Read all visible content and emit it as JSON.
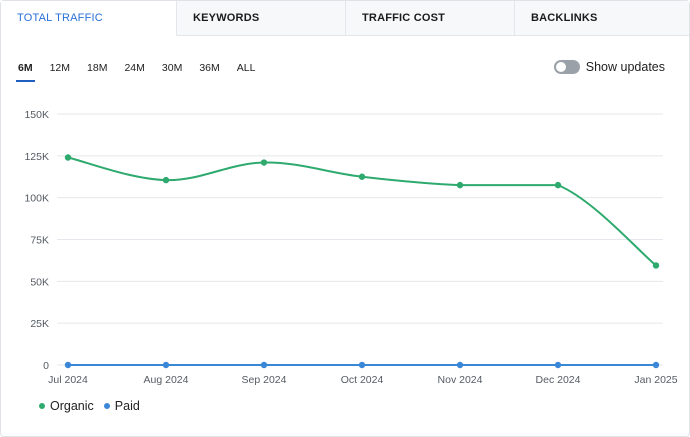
{
  "tabs": [
    {
      "label": "TOTAL TRAFFIC",
      "active": true
    },
    {
      "label": "KEYWORDS",
      "active": false
    },
    {
      "label": "TRAFFIC COST",
      "active": false
    },
    {
      "label": "BACKLINKS",
      "active": false
    }
  ],
  "ranges": [
    {
      "label": "6M",
      "active": true
    },
    {
      "label": "12M",
      "active": false
    },
    {
      "label": "18M",
      "active": false
    },
    {
      "label": "24M",
      "active": false
    },
    {
      "label": "30M",
      "active": false
    },
    {
      "label": "36M",
      "active": false
    },
    {
      "label": "ALL",
      "active": false
    }
  ],
  "show_updates": {
    "label": "Show updates",
    "enabled": false
  },
  "colors": {
    "organic": "#2eaa6e",
    "paid": "#3a87d8",
    "grid": "#e4e7eb",
    "tab_active": "#2a6fd6"
  },
  "legend": [
    {
      "label": "Organic",
      "color": "#2eaa6e"
    },
    {
      "label": "Paid",
      "color": "#3a87d8"
    }
  ],
  "chart_data": {
    "type": "line",
    "categories": [
      "Jul 2024",
      "Aug 2024",
      "Sep 2024",
      "Oct 2024",
      "Nov 2024",
      "Dec 2024",
      "Jan 2025"
    ],
    "y_ticks": [
      "0",
      "25K",
      "50K",
      "75K",
      "100K",
      "125K",
      "150K"
    ],
    "ylim": [
      0,
      150000
    ],
    "grid": true,
    "legend_position": "bottom-left",
    "series": [
      {
        "name": "Organic",
        "values": [
          124000,
          110500,
          121000,
          112500,
          107500,
          107500,
          59500
        ]
      },
      {
        "name": "Paid",
        "values": [
          0,
          0,
          0,
          0,
          0,
          0,
          0
        ]
      }
    ]
  }
}
